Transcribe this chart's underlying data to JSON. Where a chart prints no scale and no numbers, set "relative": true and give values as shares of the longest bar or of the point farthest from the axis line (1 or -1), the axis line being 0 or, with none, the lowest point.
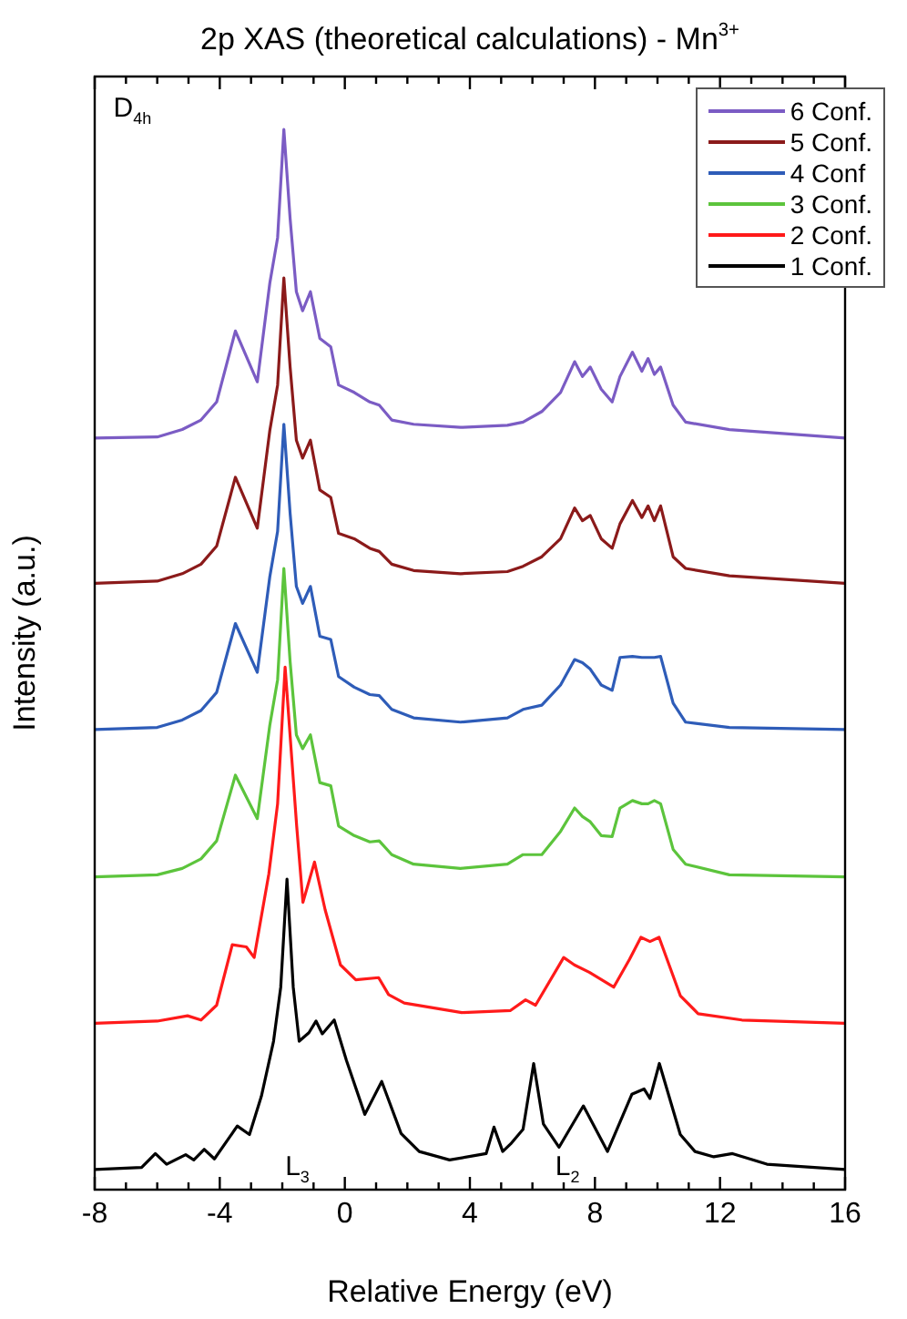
{
  "chart_data": {
    "type": "line",
    "title": "2p XAS (theoretical calculations) - Mn$^{3+}$",
    "xlabel": "Relative Energy (eV)",
    "ylabel": "Intensity (a.u.)",
    "relative": true,
    "x": [
      -8,
      -6,
      -5.2,
      -4.6,
      -4.1,
      -3.5,
      -2.8,
      -2.4,
      -2.15,
      -1.95,
      -1.75,
      -1.55,
      -1.35,
      -1.1,
      -0.8,
      -0.45,
      -0.2,
      0.3,
      0.8,
      1.1,
      1.5,
      2.2,
      3.7,
      5.2,
      5.7,
      6.3,
      6.9,
      7.35,
      7.6,
      7.85,
      8.2,
      8.55,
      8.8,
      9.2,
      9.5,
      9.7,
      9.9,
      10.1,
      10.5,
      10.9,
      12.3,
      16
    ],
    "xlim": [
      -8,
      16
    ],
    "xticks": [
      -8,
      {
        "value": -7,
        "label": null
      },
      {
        "value": -6,
        "label": null
      },
      {
        "value": -5,
        "label": null
      },
      -4,
      {
        "value": -3,
        "label": null
      },
      {
        "value": -2,
        "label": null
      },
      {
        "value": -1,
        "label": null
      },
      0,
      {
        "value": 1,
        "label": null
      },
      {
        "value": 2,
        "label": null
      },
      {
        "value": 3,
        "label": null
      },
      4,
      {
        "value": 5,
        "label": null
      },
      {
        "value": 6,
        "label": null
      },
      {
        "value": 7,
        "label": null
      },
      8,
      {
        "value": 9,
        "label": null
      },
      {
        "value": 10,
        "label": null
      },
      {
        "value": 11,
        "label": null
      },
      12,
      {
        "value": 13,
        "label": null
      },
      {
        "value": 14,
        "label": null
      },
      {
        "value": 15,
        "label": null
      },
      16
    ],
    "series": [
      {
        "name": "6 Conf.",
        "color": "#7b5cc4",
        "values": [
          0.709,
          0.71,
          0.717,
          0.726,
          0.743,
          0.81,
          0.762,
          0.855,
          0.898,
          1.0,
          0.916,
          0.847,
          0.829,
          0.847,
          0.803,
          0.795,
          0.759,
          0.752,
          0.743,
          0.74,
          0.726,
          0.722,
          0.719,
          0.721,
          0.724,
          0.734,
          0.752,
          0.781,
          0.767,
          0.776,
          0.755,
          0.743,
          0.767,
          0.79,
          0.772,
          0.784,
          0.769,
          0.776,
          0.74,
          0.724,
          0.717,
          0.709
        ]
      },
      {
        "name": "5 Conf.",
        "color": "#8b1a1a",
        "values": [
          0.572,
          0.574,
          0.581,
          0.59,
          0.607,
          0.672,
          0.624,
          0.716,
          0.759,
          0.86,
          0.776,
          0.707,
          0.69,
          0.707,
          0.66,
          0.653,
          0.619,
          0.614,
          0.605,
          0.602,
          0.59,
          0.584,
          0.581,
          0.583,
          0.588,
          0.597,
          0.614,
          0.643,
          0.631,
          0.636,
          0.614,
          0.605,
          0.628,
          0.65,
          0.634,
          0.645,
          0.631,
          0.645,
          0.597,
          0.586,
          0.579,
          0.572
        ]
      },
      {
        "name": "4 Conf",
        "color": "#2e5cb8",
        "values": [
          0.434,
          0.436,
          0.443,
          0.452,
          0.469,
          0.534,
          0.488,
          0.578,
          0.621,
          0.722,
          0.638,
          0.569,
          0.553,
          0.569,
          0.522,
          0.519,
          0.484,
          0.474,
          0.467,
          0.466,
          0.453,
          0.445,
          0.441,
          0.445,
          0.453,
          0.457,
          0.476,
          0.5,
          0.497,
          0.491,
          0.476,
          0.471,
          0.502,
          0.503,
          0.502,
          0.502,
          0.502,
          0.503,
          0.459,
          0.441,
          0.436,
          0.434
        ]
      },
      {
        "name": "3 Conf.",
        "color": "#5cc43c",
        "values": [
          0.295,
          0.297,
          0.303,
          0.312,
          0.329,
          0.391,
          0.35,
          0.438,
          0.481,
          0.586,
          0.498,
          0.429,
          0.416,
          0.429,
          0.384,
          0.381,
          0.343,
          0.334,
          0.328,
          0.329,
          0.316,
          0.307,
          0.303,
          0.307,
          0.316,
          0.316,
          0.338,
          0.36,
          0.352,
          0.347,
          0.334,
          0.333,
          0.36,
          0.367,
          0.364,
          0.364,
          0.367,
          0.364,
          0.321,
          0.307,
          0.297,
          0.295
        ]
      },
      {
        "name": "2 Conf.",
        "color": "#ff1a1a",
        "x": [
          -8,
          -6,
          -5.03,
          -4.6,
          -4.1,
          -3.6,
          -3.15,
          -2.9,
          -2.43,
          -2.15,
          -1.91,
          -1.54,
          -1.34,
          -0.97,
          -0.63,
          -0.14,
          0.35,
          1.08,
          1.4,
          1.9,
          3.74,
          5.3,
          5.78,
          6.1,
          7.0,
          7.34,
          7.82,
          8.6,
          9.1,
          9.47,
          9.76,
          10.05,
          10.73,
          11.3,
          12.7,
          16
        ],
        "values": [
          0.157,
          0.159,
          0.164,
          0.16,
          0.174,
          0.231,
          0.229,
          0.219,
          0.298,
          0.364,
          0.493,
          0.343,
          0.271,
          0.309,
          0.264,
          0.212,
          0.198,
          0.2,
          0.184,
          0.176,
          0.167,
          0.169,
          0.179,
          0.174,
          0.219,
          0.212,
          0.205,
          0.191,
          0.217,
          0.238,
          0.234,
          0.238,
          0.183,
          0.166,
          0.16,
          0.157
        ]
      },
      {
        "name": "1 Conf.",
        "color": "#000000",
        "x": [
          -8,
          -6.5,
          -6.06,
          -5.7,
          -5.09,
          -4.83,
          -4.5,
          -4.17,
          -3.44,
          -3.05,
          -2.67,
          -2.28,
          -2.05,
          -1.85,
          -1.65,
          -1.46,
          -1.15,
          -0.92,
          -0.72,
          -0.34,
          0.05,
          0.64,
          1.18,
          1.8,
          2.38,
          3.35,
          4.52,
          4.77,
          5.05,
          5.3,
          5.7,
          6.04,
          6.35,
          6.85,
          7.63,
          8.4,
          9.18,
          9.57,
          9.76,
          10.06,
          10.73,
          11.2,
          11.8,
          12.4,
          13.5,
          16
        ],
        "values": [
          0.019,
          0.021,
          0.034,
          0.024,
          0.033,
          0.028,
          0.038,
          0.029,
          0.06,
          0.052,
          0.088,
          0.14,
          0.191,
          0.293,
          0.191,
          0.14,
          0.148,
          0.159,
          0.147,
          0.16,
          0.122,
          0.071,
          0.102,
          0.053,
          0.036,
          0.028,
          0.034,
          0.059,
          0.036,
          0.043,
          0.057,
          0.119,
          0.062,
          0.04,
          0.079,
          0.036,
          0.09,
          0.095,
          0.086,
          0.119,
          0.052,
          0.036,
          0.031,
          0.034,
          0.024,
          0.019
        ]
      }
    ],
    "legend": "top right",
    "marker": "none",
    "line_style": "solid",
    "grid": false,
    "annotations": [
      "D$_{4h}$",
      "L$_{3}$",
      "L$_{2}$"
    ]
  }
}
